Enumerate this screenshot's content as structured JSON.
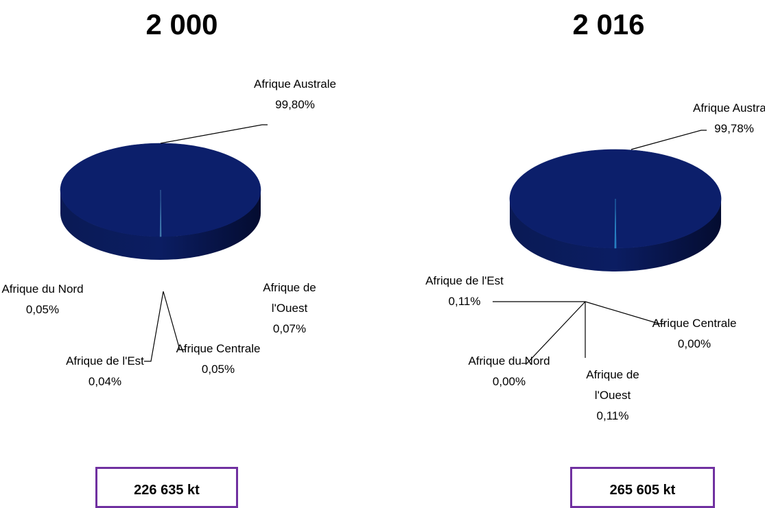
{
  "chart_data": [
    {
      "type": "pie",
      "title": "2 000",
      "categories": [
        "Afrique Australe",
        "Afrique de l'Ouest",
        "Afrique Centrale",
        "Afrique de l'Est",
        "Afrique du Nord"
      ],
      "values": [
        99.8,
        0.07,
        0.05,
        0.04,
        0.05
      ],
      "value_labels": [
        "99,80%",
        "0,07%",
        "0,05%",
        "0,04%",
        "0,05%"
      ],
      "colors": [
        "#0c1f6b",
        "#3a7ac0",
        "#4a8a9a",
        "#6aa0c8",
        "#2a5a9a"
      ],
      "total": "226 635 kt"
    },
    {
      "type": "pie",
      "title": "2 016",
      "categories": [
        "Afrique Australe",
        "Afrique Centrale",
        "Afrique de l'Ouest",
        "Afrique du Nord",
        "Afrique de l'Est"
      ],
      "values": [
        99.78,
        0.0,
        0.11,
        0.0,
        0.11
      ],
      "value_labels": [
        "99,78%",
        "0,00%",
        "0,11%",
        "0,00%",
        "0,11%"
      ],
      "colors": [
        "#0c1f6b",
        "#4a8a9a",
        "#1f6fbf",
        "#2a5a9a",
        "#2a8ac8"
      ],
      "total": "265 605 kt"
    }
  ]
}
